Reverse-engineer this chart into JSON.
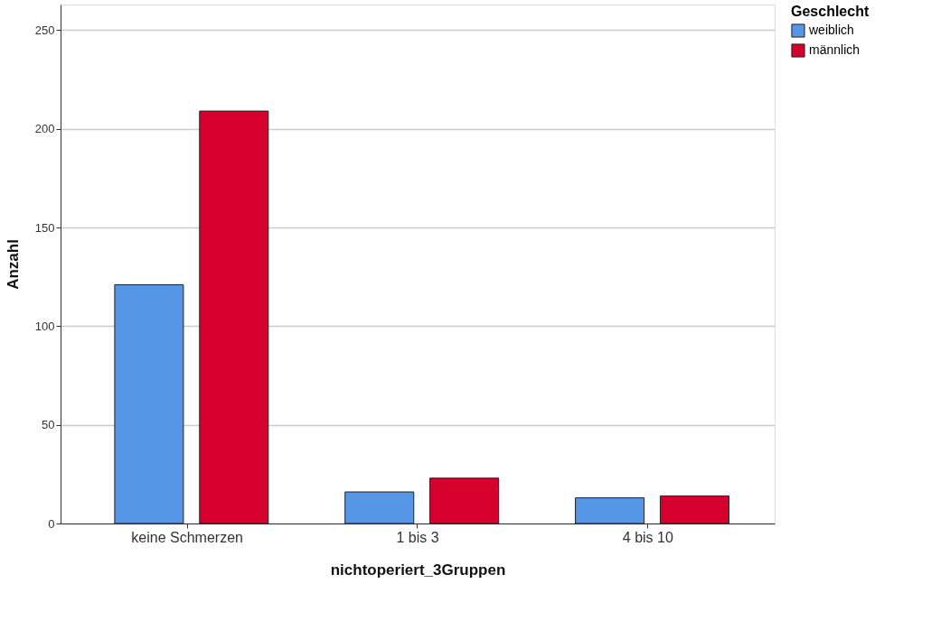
{
  "chart_data": {
    "type": "bar",
    "xlabel": "nichtoperiert_3Gruppen",
    "ylabel": "Anzahl",
    "legend_title": "Geschlecht",
    "categories": [
      "keine Schmerzen",
      "1 bis 3",
      "4 bis 10"
    ],
    "series": [
      {
        "name": "weiblich",
        "color": "#5596e6",
        "values": [
          121,
          16,
          13
        ]
      },
      {
        "name": "männlich",
        "color": "#d6002d",
        "values": [
          209,
          23,
          14
        ]
      }
    ],
    "ylim": [
      0,
      263
    ],
    "yticks": [
      0,
      50,
      100,
      150,
      200,
      250
    ],
    "grid": "y",
    "legend": "top right"
  }
}
